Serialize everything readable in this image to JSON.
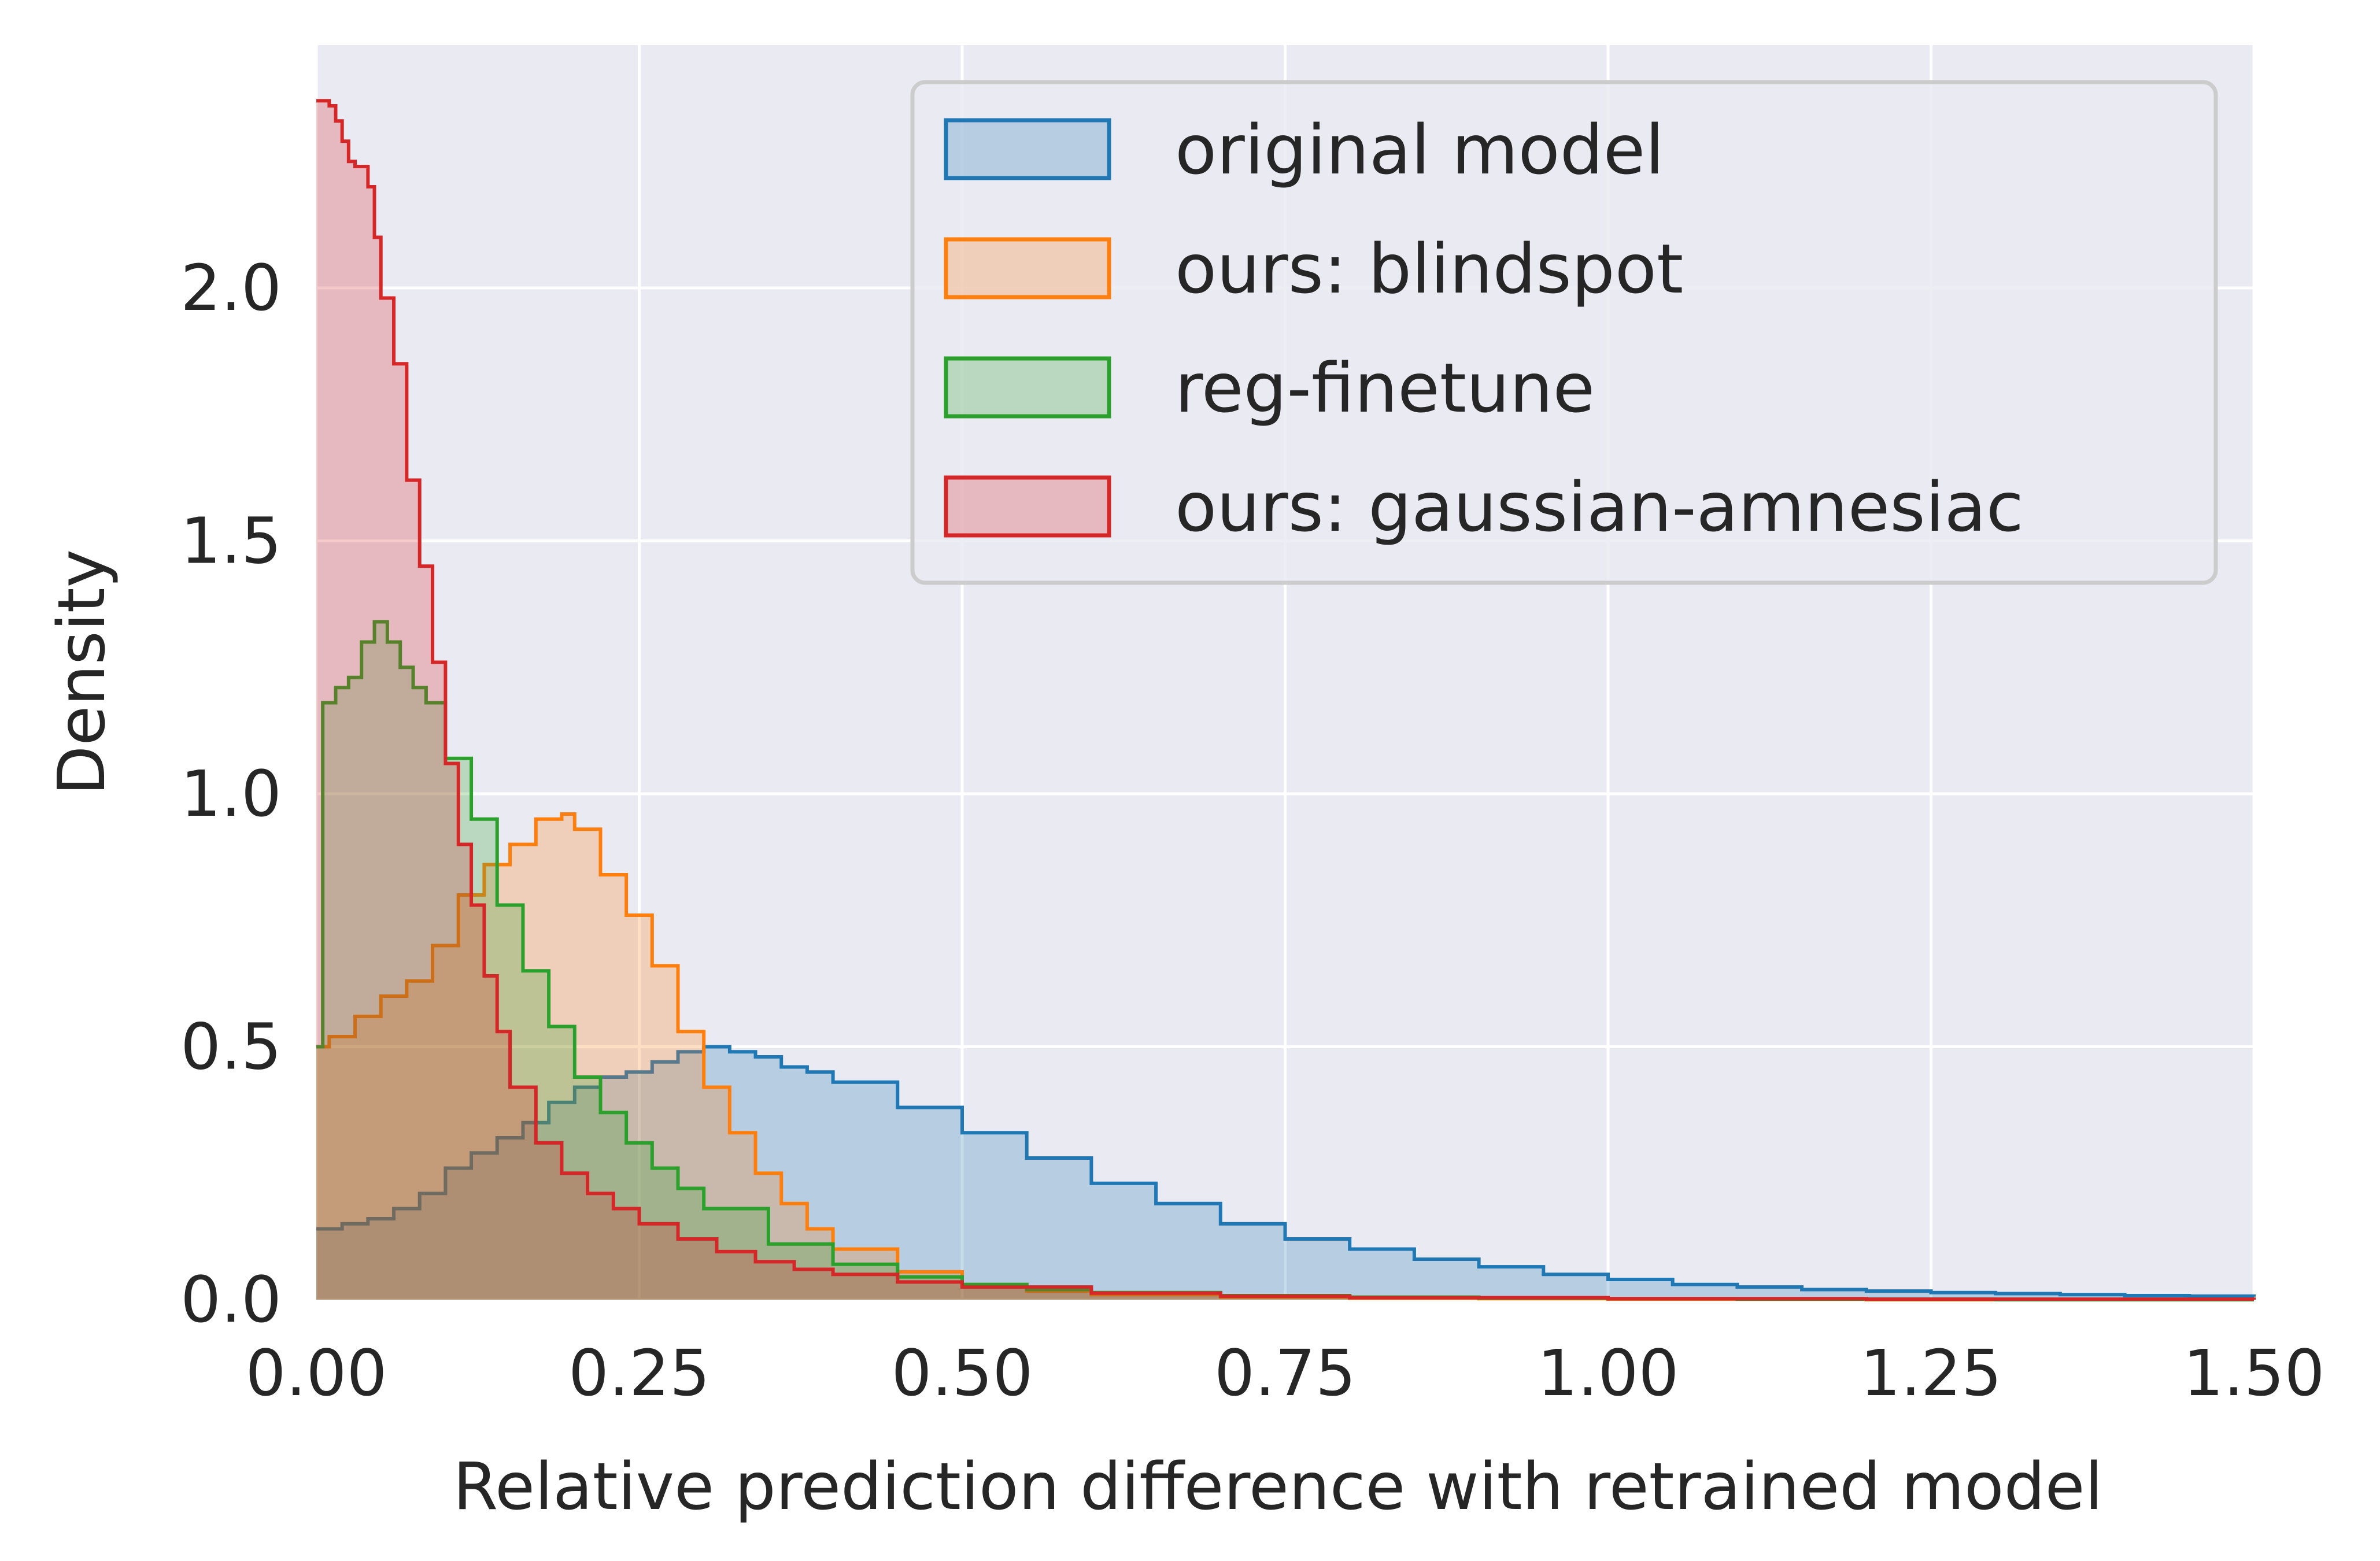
{
  "chart_data": {
    "type": "area",
    "xlabel": "Relative prediction difference with retrained model",
    "ylabel": "Density",
    "xlim": [
      0,
      1.5
    ],
    "ylim": [
      0,
      2.48
    ],
    "xticks": [
      "0.00",
      "0.25",
      "0.50",
      "0.75",
      "1.00",
      "1.25",
      "1.50"
    ],
    "yticks": [
      "0.0",
      "0.5",
      "1.0",
      "1.5",
      "2.0"
    ],
    "grid": true,
    "legend_position": "top-right",
    "background_color": "#eaeaf2",
    "series": [
      {
        "name": "original model",
        "color": "#1f77b4",
        "x": [
          0,
          0.02,
          0.04,
          0.06,
          0.08,
          0.1,
          0.12,
          0.14,
          0.16,
          0.18,
          0.2,
          0.22,
          0.24,
          0.26,
          0.28,
          0.3,
          0.32,
          0.34,
          0.36,
          0.38,
          0.4,
          0.45,
          0.5,
          0.55,
          0.6,
          0.65,
          0.7,
          0.75,
          0.8,
          0.85,
          0.9,
          0.95,
          1.0,
          1.05,
          1.1,
          1.15,
          1.2,
          1.25,
          1.3,
          1.35,
          1.4,
          1.45,
          1.5
        ],
        "y": [
          0.14,
          0.15,
          0.16,
          0.18,
          0.21,
          0.26,
          0.29,
          0.32,
          0.35,
          0.39,
          0.42,
          0.44,
          0.45,
          0.47,
          0.49,
          0.5,
          0.49,
          0.48,
          0.46,
          0.45,
          0.43,
          0.38,
          0.33,
          0.28,
          0.23,
          0.19,
          0.15,
          0.12,
          0.1,
          0.08,
          0.065,
          0.05,
          0.04,
          0.03,
          0.025,
          0.02,
          0.017,
          0.014,
          0.012,
          0.01,
          0.008,
          0.007,
          0.006
        ]
      },
      {
        "name": "ours: blindspot",
        "color": "#ff7f0e",
        "x": [
          0,
          0.01,
          0.03,
          0.05,
          0.07,
          0.09,
          0.11,
          0.13,
          0.15,
          0.17,
          0.19,
          0.2,
          0.22,
          0.24,
          0.26,
          0.28,
          0.3,
          0.32,
          0.34,
          0.36,
          0.38,
          0.4,
          0.45,
          0.5,
          0.55,
          0.6,
          0.7,
          0.8,
          0.9,
          1.0,
          1.1,
          1.2,
          1.3,
          1.4,
          1.5
        ],
        "y": [
          0.5,
          0.52,
          0.56,
          0.6,
          0.63,
          0.7,
          0.8,
          0.86,
          0.9,
          0.95,
          0.96,
          0.93,
          0.84,
          0.76,
          0.66,
          0.53,
          0.42,
          0.33,
          0.25,
          0.19,
          0.14,
          0.1,
          0.055,
          0.03,
          0.017,
          0.01,
          0.005,
          0.003,
          0.002,
          0.001,
          0.001,
          0,
          0,
          0,
          0
        ]
      },
      {
        "name": "reg-finetune",
        "color": "#2ca02c",
        "x": [
          0,
          0.005,
          0.015,
          0.025,
          0.035,
          0.045,
          0.055,
          0.065,
          0.075,
          0.085,
          0.1,
          0.12,
          0.14,
          0.16,
          0.18,
          0.2,
          0.22,
          0.24,
          0.26,
          0.28,
          0.3,
          0.35,
          0.4,
          0.45,
          0.5,
          0.55,
          0.6,
          0.7,
          0.8,
          0.9,
          1.0,
          1.1,
          1.2,
          1.3,
          1.4,
          1.5
        ],
        "y": [
          0.5,
          1.18,
          1.21,
          1.23,
          1.3,
          1.34,
          1.3,
          1.25,
          1.21,
          1.18,
          1.07,
          0.95,
          0.78,
          0.65,
          0.54,
          0.44,
          0.37,
          0.31,
          0.26,
          0.22,
          0.18,
          0.11,
          0.07,
          0.045,
          0.03,
          0.02,
          0.014,
          0.008,
          0.005,
          0.003,
          0.002,
          0.001,
          0.001,
          0,
          0,
          0
        ]
      },
      {
        "name": "ours: gaussian-amnesiac",
        "color": "#d62728",
        "x": [
          0,
          0.005,
          0.01,
          0.015,
          0.02,
          0.025,
          0.03,
          0.035,
          0.04,
          0.045,
          0.05,
          0.06,
          0.07,
          0.08,
          0.09,
          0.1,
          0.11,
          0.12,
          0.13,
          0.14,
          0.15,
          0.17,
          0.19,
          0.21,
          0.23,
          0.25,
          0.28,
          0.31,
          0.34,
          0.37,
          0.4,
          0.45,
          0.5,
          0.6,
          0.7,
          0.8,
          1.0,
          1.2,
          1.5
        ],
        "y": [
          2.37,
          2.37,
          2.36,
          2.33,
          2.29,
          2.25,
          2.24,
          2.24,
          2.2,
          2.1,
          1.98,
          1.85,
          1.62,
          1.45,
          1.26,
          1.06,
          0.9,
          0.78,
          0.64,
          0.53,
          0.42,
          0.31,
          0.25,
          0.21,
          0.18,
          0.15,
          0.12,
          0.095,
          0.075,
          0.06,
          0.05,
          0.035,
          0.025,
          0.013,
          0.007,
          0.004,
          0.002,
          0.001,
          0
        ]
      }
    ]
  }
}
